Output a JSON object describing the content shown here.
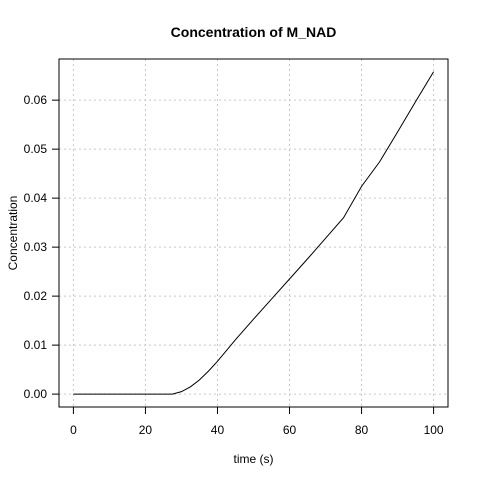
{
  "chart_data": {
    "type": "line",
    "title": "Concentration of M_NAD",
    "xlabel": "time (s)",
    "ylabel": "Concentration",
    "xlim": [
      0,
      100
    ],
    "ylim": [
      0,
      0.065
    ],
    "x_ticks": [
      0,
      20,
      40,
      60,
      80,
      100
    ],
    "y_ticks": [
      0.0,
      0.01,
      0.02,
      0.03,
      0.04,
      0.05,
      0.06
    ],
    "x_tick_labels": [
      "0",
      "20",
      "40",
      "60",
      "80",
      "100"
    ],
    "y_tick_labels": [
      "0.00",
      "0.01",
      "0.02",
      "0.03",
      "0.04",
      "0.05",
      "0.06"
    ],
    "grid": true,
    "series": [
      {
        "color": "#000000",
        "x": [
          0,
          5,
          10,
          15,
          20,
          25,
          27.5,
          30,
          32.5,
          35,
          37.5,
          40,
          45,
          50,
          55,
          60,
          65,
          70,
          75,
          80,
          85,
          90,
          95,
          100
        ],
        "y": [
          0,
          0,
          0,
          0,
          0,
          0,
          0,
          0.0005,
          0.0015,
          0.0029,
          0.0047,
          0.0067,
          0.0111,
          0.0153,
          0.0194,
          0.0235,
          0.0276,
          0.0318,
          0.036,
          0.0424,
          0.0474,
          0.0535,
          0.0597,
          0.0658
        ]
      }
    ]
  }
}
